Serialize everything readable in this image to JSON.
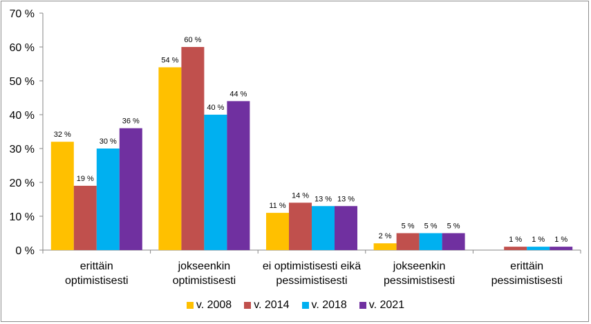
{
  "chart_data": {
    "type": "bar",
    "categories": [
      [
        "erittäin",
        "optimistisesti"
      ],
      [
        "jokseenkin",
        "optimistisesti"
      ],
      [
        "ei optimistisesti eikä",
        "pessimistisesti"
      ],
      [
        "jokseenkin",
        "pessimistisesti"
      ],
      [
        "erittäin",
        "pessimistisesti"
      ]
    ],
    "series": [
      {
        "name": "v. 2008",
        "color": "#FFC000",
        "values": [
          32,
          54,
          11,
          2,
          0
        ],
        "labels": [
          "32 %",
          "54 %",
          "11 %",
          "2 %",
          ""
        ]
      },
      {
        "name": "v. 2014",
        "color": "#C0504D",
        "values": [
          19,
          60,
          14,
          5,
          1
        ],
        "labels": [
          "19 %",
          "60 %",
          "14 %",
          "5 %",
          "1 %"
        ]
      },
      {
        "name": "v. 2018",
        "color": "#00B0F0",
        "values": [
          30,
          40,
          13,
          5,
          1
        ],
        "labels": [
          "30 %",
          "40 %",
          "13 %",
          "5 %",
          "1 %"
        ]
      },
      {
        "name": "v. 2021",
        "color": "#7030A0",
        "values": [
          36,
          44,
          13,
          5,
          1
        ],
        "labels": [
          "36 %",
          "44 %",
          "13 %",
          "5 %",
          "1 %"
        ]
      }
    ],
    "yticks": [
      "0 %",
      "10 %",
      "20 %",
      "30 %",
      "40 %",
      "50 %",
      "60 %",
      "70 %"
    ],
    "ylim": [
      0,
      70
    ],
    "grid": false,
    "legend": "bottom"
  }
}
